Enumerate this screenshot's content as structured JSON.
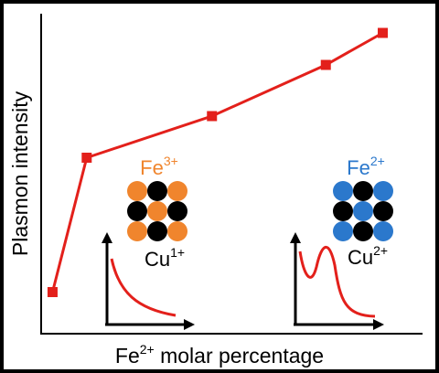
{
  "chart_data": {
    "type": "line",
    "x_label": {
      "base": "Fe",
      "sup": "2+",
      "rest": " molar percentage"
    },
    "y_label": "Plasmon intensity",
    "x": [
      3,
      12,
      45,
      75,
      90
    ],
    "series": [
      {
        "color": "#e3201b",
        "values": [
          13,
          55,
          68,
          84,
          94
        ]
      }
    ],
    "xlim": [
      0,
      100
    ],
    "ylim": [
      0,
      100
    ],
    "annotations": [
      {
        "base": "Fe",
        "sup": "3+",
        "color": "#f0852d"
      },
      {
        "base": "Cu",
        "sup": "1+",
        "color": "#000000"
      },
      {
        "base": "Fe",
        "sup": "2+",
        "color": "#2b78cc"
      },
      {
        "base": "Cu",
        "sup": "2+",
        "color": "#000000"
      }
    ]
  }
}
